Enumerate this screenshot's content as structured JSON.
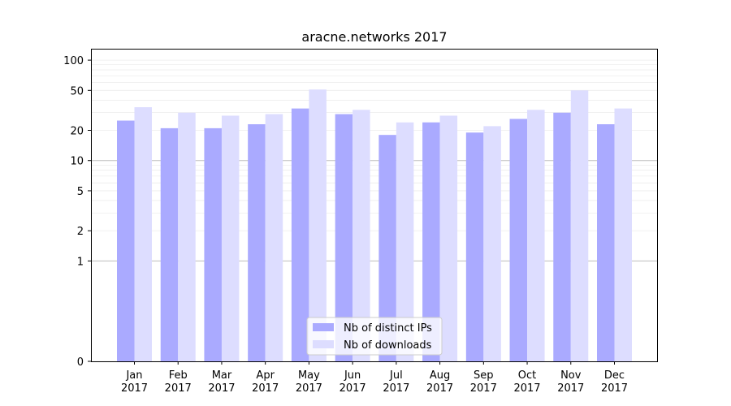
{
  "chart_data": {
    "type": "bar",
    "title": "aracne.networks 2017",
    "xlabel": "",
    "ylabel": "",
    "scale": "symlog",
    "ylim": [
      0,
      130
    ],
    "yticks": [
      0,
      1,
      2,
      5,
      10,
      20,
      50,
      100
    ],
    "grid": "horizontal",
    "legend_position": "bottom-center",
    "categories": [
      [
        "Jan",
        "2017"
      ],
      [
        "Feb",
        "2017"
      ],
      [
        "Mar",
        "2017"
      ],
      [
        "Apr",
        "2017"
      ],
      [
        "May",
        "2017"
      ],
      [
        "Jun",
        "2017"
      ],
      [
        "Jul",
        "2017"
      ],
      [
        "Aug",
        "2017"
      ],
      [
        "Sep",
        "2017"
      ],
      [
        "Oct",
        "2017"
      ],
      [
        "Nov",
        "2017"
      ],
      [
        "Dec",
        "2017"
      ]
    ],
    "series": [
      {
        "name": "Nb of distinct IPs",
        "color": "#aaaaff",
        "values": [
          25,
          21,
          21,
          23,
          33,
          29,
          18,
          24,
          19,
          26,
          30,
          23
        ]
      },
      {
        "name": "Nb of downloads",
        "color": "#ddddff",
        "values": [
          34,
          30,
          28,
          29,
          51,
          32,
          24,
          28,
          22,
          32,
          50,
          33
        ]
      }
    ]
  }
}
